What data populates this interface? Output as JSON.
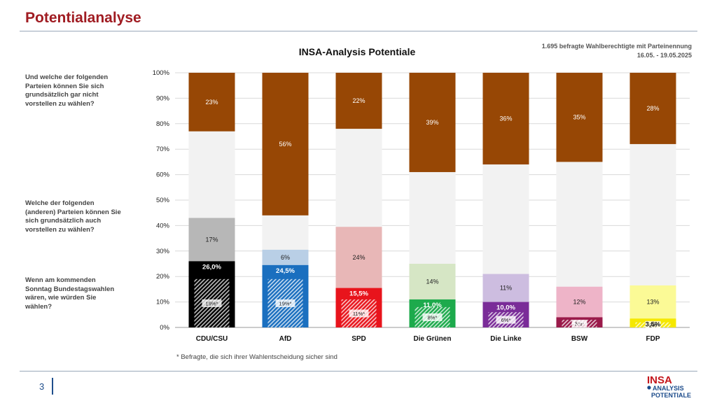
{
  "page": {
    "title": "Potentialanalyse",
    "sample_info": "1.695 befragte Wahlberechtigte mit Parteinennung",
    "date_range": "16.05. - 19.05.2025",
    "questions": {
      "q1": "Und welche der folgenden Parteien können Sie sich grundsätzlich gar nicht vorstellen zu wählen?",
      "q2": "Welche der folgenden (anderen) Parteien können Sie sich grundsätzlich auch vorstellen zu wählen?",
      "q3": "Wenn am kommenden Sonntag Bundestagswahlen wären, wie würden Sie wählen?"
    },
    "footnote": "* Befragte, die sich ihrer Wahlentscheidung sicher sind",
    "page_number": "3",
    "logo": {
      "line1": "INSA",
      "line2": "ANALYSIS",
      "line3": "POTENTIALE"
    }
  },
  "chart_data": {
    "type": "bar",
    "stacked": true,
    "title": "INSA-Analysis Potentiale",
    "categories": [
      "CDU/CSU",
      "AfD",
      "SPD",
      "Die Grünen",
      "Die Linke",
      "BSW",
      "FDP"
    ],
    "yticks": [
      "0%",
      "10%",
      "20%",
      "30%",
      "40%",
      "50%",
      "60%",
      "70%",
      "80%",
      "90%",
      "100%"
    ],
    "ylim": [
      0,
      100
    ],
    "grid": true,
    "colors": {
      "CDU/CSU": {
        "main": "#000000",
        "pot": "#b7b7b7"
      },
      "AfD": {
        "main": "#1a6fbf",
        "pot": "#b9cfe6"
      },
      "SPD": {
        "main": "#e8141c",
        "pot": "#e8b7b7"
      },
      "Die Grünen": {
        "main": "#1daa4c",
        "pot": "#d6e6c5"
      },
      "Die Linke": {
        "main": "#7a2c98",
        "pot": "#cdbde0"
      },
      "BSW": {
        "main": "#9a1a4a",
        "pot": "#eeb4c8"
      },
      "FDP": {
        "main": "#f5e800",
        "pot": "#fbfa96"
      },
      "rejection": "#974705",
      "undecided": "#f2f2f2"
    },
    "series": {
      "sure_voters": {
        "values": [
          19,
          19,
          11,
          8,
          6,
          3,
          2
        ],
        "labels": [
          "19%*",
          "19%*",
          "11%*",
          "8%*",
          "6%*",
          "3%*",
          "2%"
        ]
      },
      "vote_intention": {
        "values": [
          26.0,
          24.5,
          15.5,
          11.0,
          10.0,
          4.0,
          3.5
        ],
        "labels": [
          "26,0%",
          "24,5%",
          "15,5%",
          "11,0%",
          "10,0%",
          "4,0%",
          "3,5%"
        ]
      },
      "potential": {
        "values": [
          17,
          6,
          24,
          14,
          11,
          12,
          13
        ],
        "labels": [
          "17%",
          "6%",
          "24%",
          "14%",
          "11%",
          "12%",
          "13%"
        ]
      },
      "rejection": {
        "values": [
          23,
          56,
          22,
          39,
          36,
          35,
          28
        ],
        "labels": [
          "23%",
          "56%",
          "22%",
          "39%",
          "36%",
          "35%",
          "28%"
        ]
      }
    }
  }
}
